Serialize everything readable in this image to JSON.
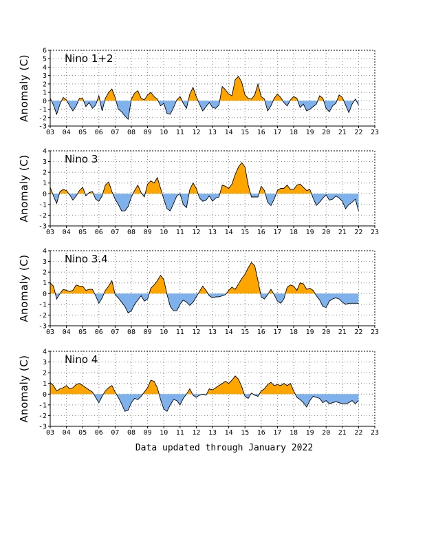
{
  "footer": "Data updated through January 2022",
  "colors": {
    "positive": "#ffa500",
    "negative": "#7fb2ec",
    "line": "#000000",
    "grid": "#808080"
  },
  "chart_data": [
    {
      "type": "area",
      "title": "Nino 1+2",
      "ylabel": "Anomaly (C)",
      "xlim": [
        2003,
        2023
      ],
      "ylim": [
        -3,
        6
      ],
      "yticks": [
        -3,
        -2,
        -1,
        0,
        1,
        2,
        3,
        4,
        5,
        6
      ],
      "xtick_labels": [
        "03",
        "04",
        "05",
        "06",
        "07",
        "08",
        "09",
        "10",
        "11",
        "12",
        "13",
        "14",
        "15",
        "16",
        "17",
        "18",
        "19",
        "20",
        "21",
        "22",
        "23"
      ],
      "grid": true,
      "series": [
        {
          "x": [
            2003.0,
            2003.2,
            2003.4,
            2003.6,
            2003.8,
            2004.0,
            2004.2,
            2004.4,
            2004.6,
            2004.8,
            2005.0,
            2005.2,
            2005.4,
            2005.6,
            2005.8,
            2006.0,
            2006.2,
            2006.4,
            2006.6,
            2006.8,
            2007.0,
            2007.2,
            2007.4,
            2007.6,
            2007.8,
            2008.0,
            2008.2,
            2008.4,
            2008.6,
            2008.8,
            2009.0,
            2009.2,
            2009.4,
            2009.6,
            2009.8,
            2010.0,
            2010.2,
            2010.4,
            2010.6,
            2010.8,
            2011.0,
            2011.2,
            2011.4,
            2011.6,
            2011.8,
            2012.0,
            2012.2,
            2012.4,
            2012.6,
            2012.8,
            2013.0,
            2013.2,
            2013.4,
            2013.6,
            2013.8,
            2014.0,
            2014.2,
            2014.4,
            2014.6,
            2014.8,
            2015.0,
            2015.2,
            2015.4,
            2015.6,
            2015.8,
            2016.0,
            2016.2,
            2016.4,
            2016.6,
            2016.8,
            2017.0,
            2017.2,
            2017.4,
            2017.6,
            2017.8,
            2018.0,
            2018.2,
            2018.4,
            2018.6,
            2018.8,
            2019.0,
            2019.2,
            2019.4,
            2019.6,
            2019.8,
            2020.0,
            2020.2,
            2020.4,
            2020.6,
            2020.8,
            2021.0,
            2021.2,
            2021.4,
            2021.6,
            2021.8,
            2022.0
          ],
          "y": [
            0.3,
            -0.5,
            -1.6,
            -0.4,
            0.4,
            0.1,
            -0.6,
            -1.2,
            -0.6,
            0.3,
            0.3,
            -0.7,
            -0.2,
            -0.9,
            -0.5,
            0.6,
            -1.2,
            0.3,
            1.0,
            1.4,
            0.4,
            -1.0,
            -1.3,
            -1.8,
            -2.2,
            0.2,
            0.9,
            1.2,
            0.3,
            0.1,
            0.7,
            1.0,
            0.5,
            0.2,
            -0.6,
            -0.3,
            -1.5,
            -1.6,
            -0.8,
            0.1,
            0.5,
            -0.3,
            -0.9,
            0.8,
            1.6,
            0.5,
            -0.4,
            -1.2,
            -0.7,
            -0.2,
            -0.8,
            -0.9,
            -0.5,
            1.7,
            1.3,
            0.8,
            0.6,
            2.5,
            2.9,
            2.2,
            0.7,
            0.3,
            0.2,
            0.7,
            2.0,
            0.5,
            0.2,
            -1.2,
            -0.6,
            0.3,
            0.8,
            0.4,
            -0.2,
            -0.6,
            0.1,
            0.5,
            0.3,
            -0.8,
            -0.4,
            -1.2,
            -1.0,
            -0.7,
            -0.4,
            0.6,
            0.3,
            -0.9,
            -1.3,
            -0.6,
            -0.3,
            0.7,
            0.4,
            -0.5,
            -1.4,
            -0.4,
            0.2,
            -0.5
          ]
        }
      ]
    },
    {
      "type": "area",
      "title": "Nino 3",
      "ylabel": "Anomaly (C)",
      "xlim": [
        2003,
        2023
      ],
      "ylim": [
        -3,
        4
      ],
      "yticks": [
        -3,
        -2,
        -1,
        0,
        1,
        2,
        3,
        4
      ],
      "xtick_labels": [
        "03",
        "04",
        "05",
        "06",
        "07",
        "08",
        "09",
        "10",
        "11",
        "12",
        "13",
        "14",
        "15",
        "16",
        "17",
        "18",
        "19",
        "20",
        "21",
        "22",
        "23"
      ],
      "grid": true,
      "series": [
        {
          "x": [
            2003.0,
            2003.2,
            2003.4,
            2003.6,
            2003.8,
            2004.0,
            2004.2,
            2004.4,
            2004.6,
            2004.8,
            2005.0,
            2005.2,
            2005.4,
            2005.6,
            2005.8,
            2006.0,
            2006.2,
            2006.4,
            2006.6,
            2006.8,
            2007.0,
            2007.2,
            2007.4,
            2007.6,
            2007.8,
            2008.0,
            2008.2,
            2008.4,
            2008.6,
            2008.8,
            2009.0,
            2009.2,
            2009.4,
            2009.6,
            2009.8,
            2010.0,
            2010.2,
            2010.4,
            2010.6,
            2010.8,
            2011.0,
            2011.2,
            2011.4,
            2011.6,
            2011.8,
            2012.0,
            2012.2,
            2012.4,
            2012.6,
            2012.8,
            2013.0,
            2013.2,
            2013.4,
            2013.6,
            2013.8,
            2014.0,
            2014.2,
            2014.4,
            2014.6,
            2014.8,
            2015.0,
            2015.2,
            2015.4,
            2015.6,
            2015.8,
            2016.0,
            2016.2,
            2016.4,
            2016.6,
            2016.8,
            2017.0,
            2017.2,
            2017.4,
            2017.6,
            2017.8,
            2018.0,
            2018.2,
            2018.4,
            2018.6,
            2018.8,
            2019.0,
            2019.2,
            2019.4,
            2019.6,
            2019.8,
            2020.0,
            2020.2,
            2020.4,
            2020.6,
            2020.8,
            2021.0,
            2021.2,
            2021.4,
            2021.6,
            2021.8,
            2022.0
          ],
          "y": [
            0.6,
            -0.2,
            -0.9,
            0.2,
            0.4,
            0.3,
            -0.1,
            -0.6,
            -0.2,
            0.3,
            0.6,
            -0.2,
            0.1,
            0.2,
            -0.5,
            -0.7,
            -0.2,
            0.8,
            1.1,
            0.2,
            -0.5,
            -1.0,
            -1.6,
            -1.6,
            -1.2,
            -0.3,
            0.3,
            0.8,
            0.1,
            -0.3,
            0.9,
            1.2,
            1.0,
            1.5,
            0.5,
            -0.5,
            -1.4,
            -1.6,
            -0.9,
            -0.2,
            0.0,
            -1.0,
            -1.3,
            0.4,
            1.0,
            0.5,
            -0.4,
            -0.7,
            -0.6,
            -0.2,
            -0.7,
            -0.4,
            -0.3,
            0.8,
            0.7,
            0.5,
            0.9,
            1.8,
            2.5,
            2.9,
            2.5,
            0.8,
            -0.3,
            -0.3,
            -0.3,
            0.7,
            0.3,
            -0.8,
            -1.1,
            -0.5,
            0.3,
            0.5,
            0.5,
            0.8,
            0.4,
            0.4,
            0.8,
            0.9,
            0.6,
            0.3,
            0.4,
            -0.4,
            -1.1,
            -0.8,
            -0.4,
            -0.1,
            -0.6,
            -0.5,
            -0.2,
            -0.4,
            -0.7,
            -1.4,
            -1.0,
            -0.8,
            -0.5,
            -1.6
          ]
        }
      ]
    },
    {
      "type": "area",
      "title": "Nino 3.4",
      "ylabel": "Anomaly (C)",
      "xlim": [
        2003,
        2023
      ],
      "ylim": [
        -3,
        4
      ],
      "yticks": [
        -3,
        -2,
        -1,
        0,
        1,
        2,
        3,
        4
      ],
      "xtick_labels": [
        "03",
        "04",
        "05",
        "06",
        "07",
        "08",
        "09",
        "10",
        "11",
        "12",
        "13",
        "14",
        "15",
        "16",
        "17",
        "18",
        "19",
        "20",
        "21",
        "22",
        "23"
      ],
      "grid": true,
      "series": [
        {
          "x": [
            2003.0,
            2003.2,
            2003.4,
            2003.6,
            2003.8,
            2004.0,
            2004.2,
            2004.4,
            2004.6,
            2004.8,
            2005.0,
            2005.2,
            2005.4,
            2005.6,
            2005.8,
            2006.0,
            2006.2,
            2006.4,
            2006.6,
            2006.8,
            2007.0,
            2007.2,
            2007.4,
            2007.6,
            2007.8,
            2008.0,
            2008.2,
            2008.4,
            2008.6,
            2008.8,
            2009.0,
            2009.2,
            2009.4,
            2009.6,
            2009.8,
            2010.0,
            2010.2,
            2010.4,
            2010.6,
            2010.8,
            2011.0,
            2011.2,
            2011.4,
            2011.6,
            2011.8,
            2012.0,
            2012.2,
            2012.4,
            2012.6,
            2012.8,
            2013.0,
            2013.2,
            2013.4,
            2013.6,
            2013.8,
            2014.0,
            2014.2,
            2014.4,
            2014.6,
            2014.8,
            2015.0,
            2015.2,
            2015.4,
            2015.6,
            2015.8,
            2016.0,
            2016.2,
            2016.4,
            2016.6,
            2016.8,
            2017.0,
            2017.2,
            2017.4,
            2017.6,
            2017.8,
            2018.0,
            2018.2,
            2018.4,
            2018.6,
            2018.8,
            2019.0,
            2019.2,
            2019.4,
            2019.6,
            2019.8,
            2020.0,
            2020.2,
            2020.4,
            2020.6,
            2020.8,
            2021.0,
            2021.2,
            2021.4,
            2021.6,
            2021.8,
            2022.0
          ],
          "y": [
            1.0,
            0.7,
            -0.5,
            0.0,
            0.4,
            0.3,
            0.2,
            0.3,
            0.8,
            0.7,
            0.7,
            0.3,
            0.4,
            0.4,
            -0.2,
            -0.9,
            -0.4,
            0.3,
            0.7,
            1.2,
            -0.1,
            -0.4,
            -0.8,
            -1.2,
            -1.8,
            -1.6,
            -1.0,
            -0.6,
            -0.2,
            -0.7,
            -0.5,
            0.5,
            0.8,
            1.2,
            1.7,
            1.3,
            -0.1,
            -1.2,
            -1.6,
            -1.6,
            -1.0,
            -0.6,
            -0.8,
            -1.1,
            -0.8,
            -0.3,
            0.2,
            0.7,
            0.3,
            -0.2,
            -0.4,
            -0.3,
            -0.3,
            -0.2,
            -0.1,
            0.3,
            0.6,
            0.4,
            0.9,
            1.4,
            1.8,
            2.4,
            2.9,
            2.6,
            1.2,
            -0.3,
            -0.5,
            -0.1,
            0.4,
            -0.1,
            -0.7,
            -0.9,
            -0.5,
            0.6,
            0.8,
            0.7,
            0.3,
            1.0,
            0.9,
            0.4,
            0.5,
            0.3,
            -0.2,
            -0.6,
            -1.2,
            -1.3,
            -0.7,
            -0.5,
            -0.4,
            -0.5,
            -0.8,
            -1.0,
            -0.9,
            -0.9,
            -0.9,
            -0.9
          ]
        }
      ]
    },
    {
      "type": "area",
      "title": "Nino 4",
      "ylabel": "Anomaly (C)",
      "xlim": [
        2003,
        2023
      ],
      "ylim": [
        -3,
        4
      ],
      "yticks": [
        -3,
        -2,
        -1,
        0,
        1,
        2,
        3,
        4
      ],
      "xtick_labels": [
        "03",
        "04",
        "05",
        "06",
        "07",
        "08",
        "09",
        "10",
        "11",
        "12",
        "13",
        "14",
        "15",
        "16",
        "17",
        "18",
        "19",
        "20",
        "21",
        "22",
        "23"
      ],
      "grid": true,
      "series": [
        {
          "x": [
            2003.0,
            2003.2,
            2003.4,
            2003.6,
            2003.8,
            2004.0,
            2004.2,
            2004.4,
            2004.6,
            2004.8,
            2005.0,
            2005.2,
            2005.4,
            2005.6,
            2005.8,
            2006.0,
            2006.2,
            2006.4,
            2006.6,
            2006.8,
            2007.0,
            2007.2,
            2007.4,
            2007.6,
            2007.8,
            2008.0,
            2008.2,
            2008.4,
            2008.6,
            2008.8,
            2009.0,
            2009.2,
            2009.4,
            2009.6,
            2009.8,
            2010.0,
            2010.2,
            2010.4,
            2010.6,
            2010.8,
            2011.0,
            2011.2,
            2011.4,
            2011.6,
            2011.8,
            2012.0,
            2012.2,
            2012.4,
            2012.6,
            2012.8,
            2013.0,
            2013.2,
            2013.4,
            2013.6,
            2013.8,
            2014.0,
            2014.2,
            2014.4,
            2014.6,
            2014.8,
            2015.0,
            2015.2,
            2015.4,
            2015.6,
            2015.8,
            2016.0,
            2016.2,
            2016.4,
            2016.6,
            2016.8,
            2017.0,
            2017.2,
            2017.4,
            2017.6,
            2017.8,
            2018.0,
            2018.2,
            2018.4,
            2018.6,
            2018.8,
            2019.0,
            2019.2,
            2019.4,
            2019.6,
            2019.8,
            2020.0,
            2020.2,
            2020.4,
            2020.6,
            2020.8,
            2021.0,
            2021.2,
            2021.4,
            2021.6,
            2021.8,
            2022.0
          ],
          "y": [
            1.1,
            0.8,
            0.3,
            0.5,
            0.6,
            0.8,
            0.5,
            0.6,
            0.9,
            1.0,
            0.8,
            0.6,
            0.4,
            0.2,
            -0.3,
            -0.8,
            -0.2,
            0.3,
            0.6,
            0.8,
            0.2,
            -0.3,
            -0.9,
            -1.6,
            -1.5,
            -0.8,
            -0.4,
            -0.5,
            -0.2,
            0.2,
            0.6,
            1.3,
            1.2,
            0.6,
            -0.5,
            -1.4,
            -1.6,
            -1.0,
            -0.5,
            -0.6,
            -1.0,
            -0.4,
            0.0,
            0.5,
            -0.1,
            -0.3,
            -0.1,
            0.0,
            -0.1,
            0.5,
            0.4,
            0.6,
            0.8,
            1.0,
            1.2,
            1.0,
            1.3,
            1.7,
            1.4,
            0.7,
            -0.2,
            -0.4,
            0.1,
            -0.1,
            -0.2,
            0.3,
            0.5,
            0.9,
            1.1,
            0.8,
            0.9,
            0.8,
            1.0,
            0.8,
            1.0,
            0.3,
            -0.3,
            -0.5,
            -0.8,
            -1.2,
            -0.6,
            -0.2,
            -0.3,
            -0.4,
            -0.8,
            -0.6,
            -0.9,
            -0.8,
            -0.7,
            -0.8,
            -0.9,
            -0.9,
            -0.8,
            -0.6,
            -0.9,
            -0.6
          ]
        }
      ]
    }
  ]
}
